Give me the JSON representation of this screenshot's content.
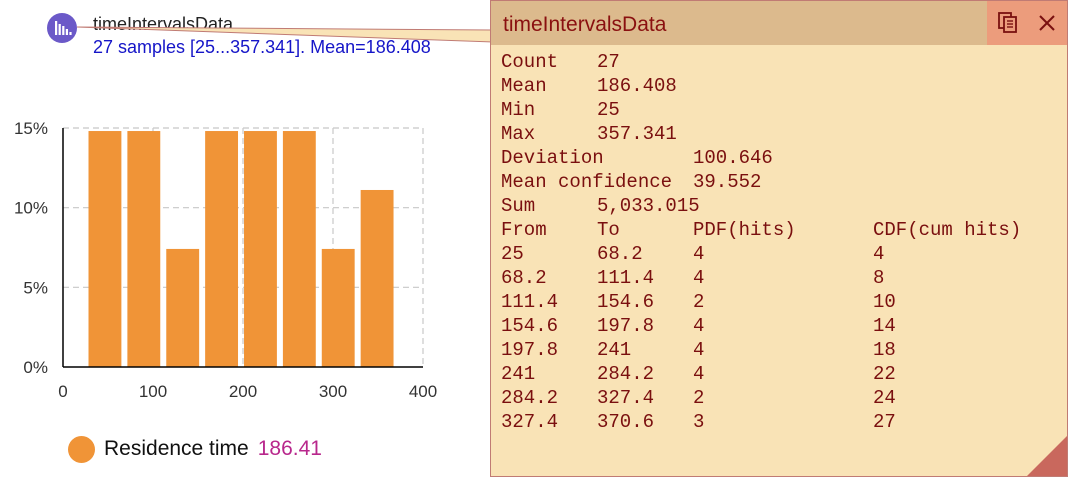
{
  "dataset": {
    "title": "timeIntervalsData",
    "summary": "27 samples [25...357.341]. Mean=186.408"
  },
  "chart_data": {
    "type": "bar",
    "x_ticks": [
      "0",
      "100",
      "200",
      "300",
      "400"
    ],
    "y_ticks": [
      "0%",
      "5%",
      "10%",
      "15%"
    ],
    "xlim": [
      0,
      400
    ],
    "ylim": [
      0,
      15
    ],
    "grid": true,
    "bins": [
      {
        "from": 25,
        "to": 68.2,
        "percent": 14.81
      },
      {
        "from": 68.2,
        "to": 111.4,
        "percent": 14.81
      },
      {
        "from": 111.4,
        "to": 154.6,
        "percent": 7.41
      },
      {
        "from": 154.6,
        "to": 197.8,
        "percent": 14.81
      },
      {
        "from": 197.8,
        "to": 241,
        "percent": 14.81
      },
      {
        "from": 241,
        "to": 284.2,
        "percent": 14.81
      },
      {
        "from": 284.2,
        "to": 327.4,
        "percent": 7.41
      },
      {
        "from": 327.4,
        "to": 370.6,
        "percent": 11.11
      }
    ],
    "bar_color": "#f09437"
  },
  "legend": {
    "label": "Residence time",
    "value": "186.41",
    "color": "#f09437",
    "value_color": "#b8278c"
  },
  "stats_window": {
    "title": "timeIntervalsData",
    "icons": [
      "copy-icon",
      "close-icon"
    ],
    "stats": [
      {
        "label": "Count",
        "value": "27"
      },
      {
        "label": "Mean",
        "value": "186.408"
      },
      {
        "label": "Min",
        "value": "25"
      },
      {
        "label": "Max",
        "value": "357.341"
      },
      {
        "label": "Deviation",
        "value": "100.646"
      },
      {
        "label": "Mean confidence",
        "value": "39.552"
      },
      {
        "label": "Sum",
        "value": "5,033.015"
      }
    ],
    "table_headers": [
      "From",
      "To",
      "PDF(hits)",
      "CDF(cum hits)"
    ],
    "table_rows": [
      [
        "25",
        "68.2",
        "4",
        "4"
      ],
      [
        "68.2",
        "111.4",
        "4",
        "8"
      ],
      [
        "111.4",
        "154.6",
        "2",
        "10"
      ],
      [
        "154.6",
        "197.8",
        "4",
        "14"
      ],
      [
        "197.8",
        "241",
        "4",
        "18"
      ],
      [
        "241",
        "284.2",
        "4",
        "22"
      ],
      [
        "284.2",
        "327.4",
        "2",
        "24"
      ],
      [
        "327.4",
        "370.6",
        "3",
        "27"
      ]
    ]
  }
}
